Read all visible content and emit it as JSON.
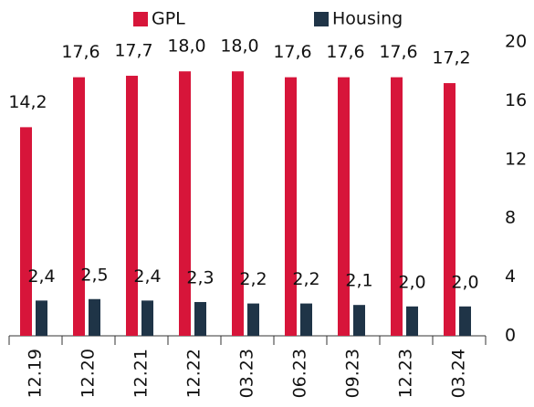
{
  "chart_data": {
    "type": "bar",
    "categories": [
      "12.19",
      "12.20",
      "12.21",
      "12.22",
      "03.23",
      "06.23",
      "09.23",
      "12.23",
      "03.24"
    ],
    "series": [
      {
        "name": "GPL",
        "color": "#d7153a",
        "values": [
          14.2,
          17.6,
          17.7,
          18.0,
          18.0,
          17.6,
          17.6,
          17.6,
          17.2
        ],
        "value_labels": [
          "14,2",
          "17,6",
          "17,7",
          "18,0",
          "18,0",
          "17,6",
          "17,6",
          "17,6",
          "17,2"
        ]
      },
      {
        "name": "Housing",
        "color": "#1f3447",
        "values": [
          2.4,
          2.5,
          2.4,
          2.3,
          2.2,
          2.2,
          2.1,
          2.0,
          2.0
        ],
        "value_labels": [
          "2,4",
          "2,5",
          "2,4",
          "2,3",
          "2,2",
          "2,2",
          "2,1",
          "2,0",
          "2,0"
        ]
      }
    ],
    "ylim": [
      0,
      20
    ],
    "yticks": [
      0,
      4,
      8,
      12,
      16,
      20
    ],
    "y_axis_side": "right",
    "legend": "top"
  }
}
